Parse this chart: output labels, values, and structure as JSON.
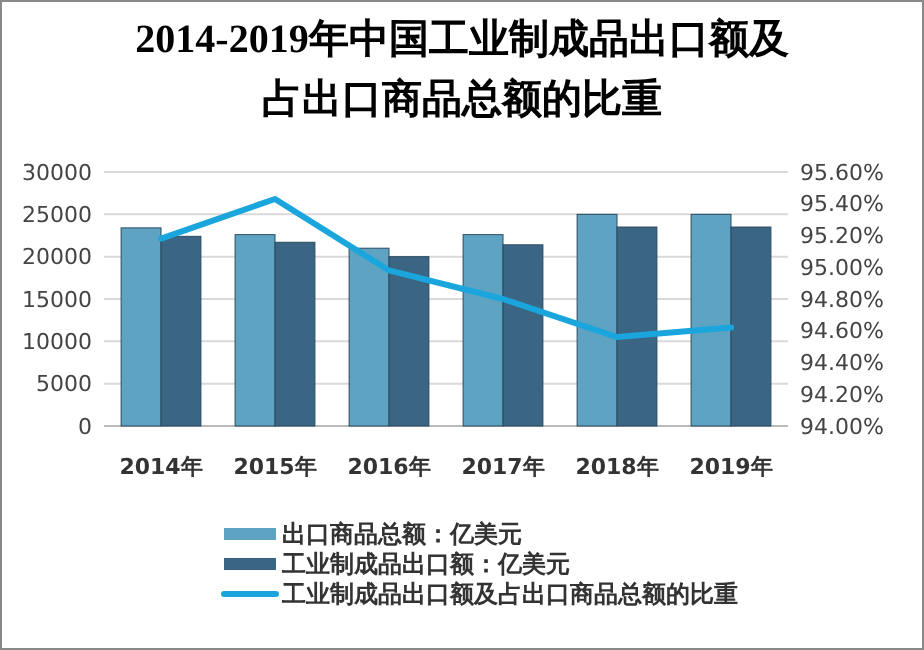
{
  "chart_data": {
    "type": "bar",
    "title": "2014-2019年中国工业制成品出口额及占出口商品总额的比重",
    "categories": [
      "2014年",
      "2015年",
      "2016年",
      "2017年",
      "2018年",
      "2019年"
    ],
    "series": [
      {
        "name": "出口商品总额：亿美元",
        "color": "#5fa3c3",
        "values": [
          23400,
          22600,
          21000,
          22600,
          25000,
          25000
        ]
      },
      {
        "name": "工业制成品出口额：亿美元",
        "color": "#3a6583",
        "values": [
          22400,
          21700,
          20000,
          21400,
          23500,
          23500
        ]
      },
      {
        "name": "工业制成品出口额及占出口商品总额的比重",
        "type": "line",
        "axis": "y2",
        "color": "#1aa6dc",
        "values": [
          95.18,
          95.43,
          94.98,
          94.8,
          94.56,
          94.62
        ]
      }
    ],
    "ylim": [
      0,
      30000
    ],
    "yticks": [
      0,
      5000,
      10000,
      15000,
      20000,
      25000,
      30000
    ],
    "y2lim": [
      94,
      95.6
    ],
    "y2ticks": [
      {
        "value": 94,
        "label": "94.00%"
      },
      {
        "value": 94.2,
        "label": "94.20%"
      },
      {
        "value": 94.4,
        "label": "94.40%"
      },
      {
        "value": 94.6,
        "label": "94.60%"
      },
      {
        "value": 94.8,
        "label": "94.80%"
      },
      {
        "value": 95,
        "label": "95.00%"
      },
      {
        "value": 95.2,
        "label": "95.20%"
      },
      {
        "value": 95.4,
        "label": "95.40%"
      },
      {
        "value": 95.6,
        "label": "95.60%"
      }
    ],
    "grid": "y",
    "legend": "bottom"
  }
}
